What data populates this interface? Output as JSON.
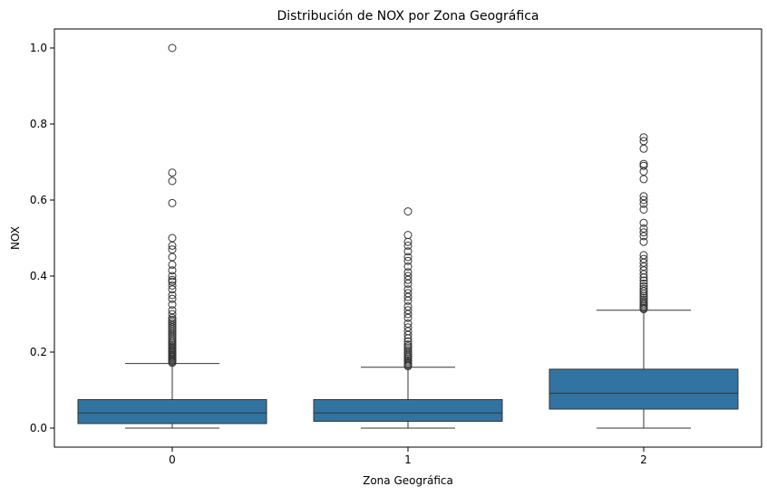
{
  "chart_data": {
    "type": "box",
    "title": "Distribución de NOX por Zona Geográfica",
    "xlabel": "Zona Geográfica",
    "ylabel": "NOX",
    "categories": [
      "0",
      "1",
      "2"
    ],
    "ylim": [
      -0.05,
      1.05
    ],
    "yticks": [
      0.0,
      0.2,
      0.4,
      0.6,
      0.8,
      1.0
    ],
    "ytick_labels": [
      "0.0",
      "0.2",
      "0.4",
      "0.6",
      "0.8",
      "1.0"
    ],
    "grid": false,
    "legend": "none",
    "box_color": "#3274a1",
    "edge_color": "#333333",
    "series": [
      {
        "category": "0",
        "whisker_low": 0.0,
        "q1": 0.012,
        "median": 0.04,
        "q3": 0.075,
        "whisker_high": 0.17,
        "outliers": [
          0.172,
          0.175,
          0.178,
          0.181,
          0.184,
          0.187,
          0.19,
          0.193,
          0.196,
          0.199,
          0.202,
          0.206,
          0.21,
          0.214,
          0.218,
          0.222,
          0.226,
          0.23,
          0.235,
          0.24,
          0.245,
          0.25,
          0.255,
          0.26,
          0.265,
          0.27,
          0.275,
          0.28,
          0.285,
          0.29,
          0.3,
          0.31,
          0.325,
          0.34,
          0.35,
          0.365,
          0.375,
          0.385,
          0.39,
          0.4,
          0.415,
          0.43,
          0.45,
          0.47,
          0.48,
          0.5,
          0.592,
          0.65,
          0.672,
          1.0
        ]
      },
      {
        "category": "1",
        "whisker_low": 0.0,
        "q1": 0.018,
        "median": 0.04,
        "q3": 0.075,
        "whisker_high": 0.16,
        "outliers": [
          0.163,
          0.166,
          0.17,
          0.174,
          0.178,
          0.182,
          0.186,
          0.19,
          0.195,
          0.2,
          0.205,
          0.21,
          0.215,
          0.22,
          0.228,
          0.236,
          0.245,
          0.255,
          0.265,
          0.275,
          0.29,
          0.3,
          0.31,
          0.32,
          0.335,
          0.345,
          0.355,
          0.365,
          0.38,
          0.39,
          0.4,
          0.41,
          0.425,
          0.44,
          0.45,
          0.465,
          0.48,
          0.49,
          0.508,
          0.57
        ]
      },
      {
        "category": "2",
        "whisker_low": 0.0,
        "q1": 0.05,
        "median": 0.092,
        "q3": 0.155,
        "whisker_high": 0.31,
        "outliers": [
          0.313,
          0.316,
          0.32,
          0.324,
          0.328,
          0.333,
          0.338,
          0.343,
          0.348,
          0.354,
          0.36,
          0.366,
          0.373,
          0.38,
          0.388,
          0.396,
          0.405,
          0.415,
          0.425,
          0.435,
          0.445,
          0.455,
          0.49,
          0.505,
          0.515,
          0.525,
          0.54,
          0.575,
          0.59,
          0.6,
          0.61,
          0.655,
          0.675,
          0.69,
          0.695,
          0.735,
          0.755,
          0.765
        ]
      }
    ]
  }
}
